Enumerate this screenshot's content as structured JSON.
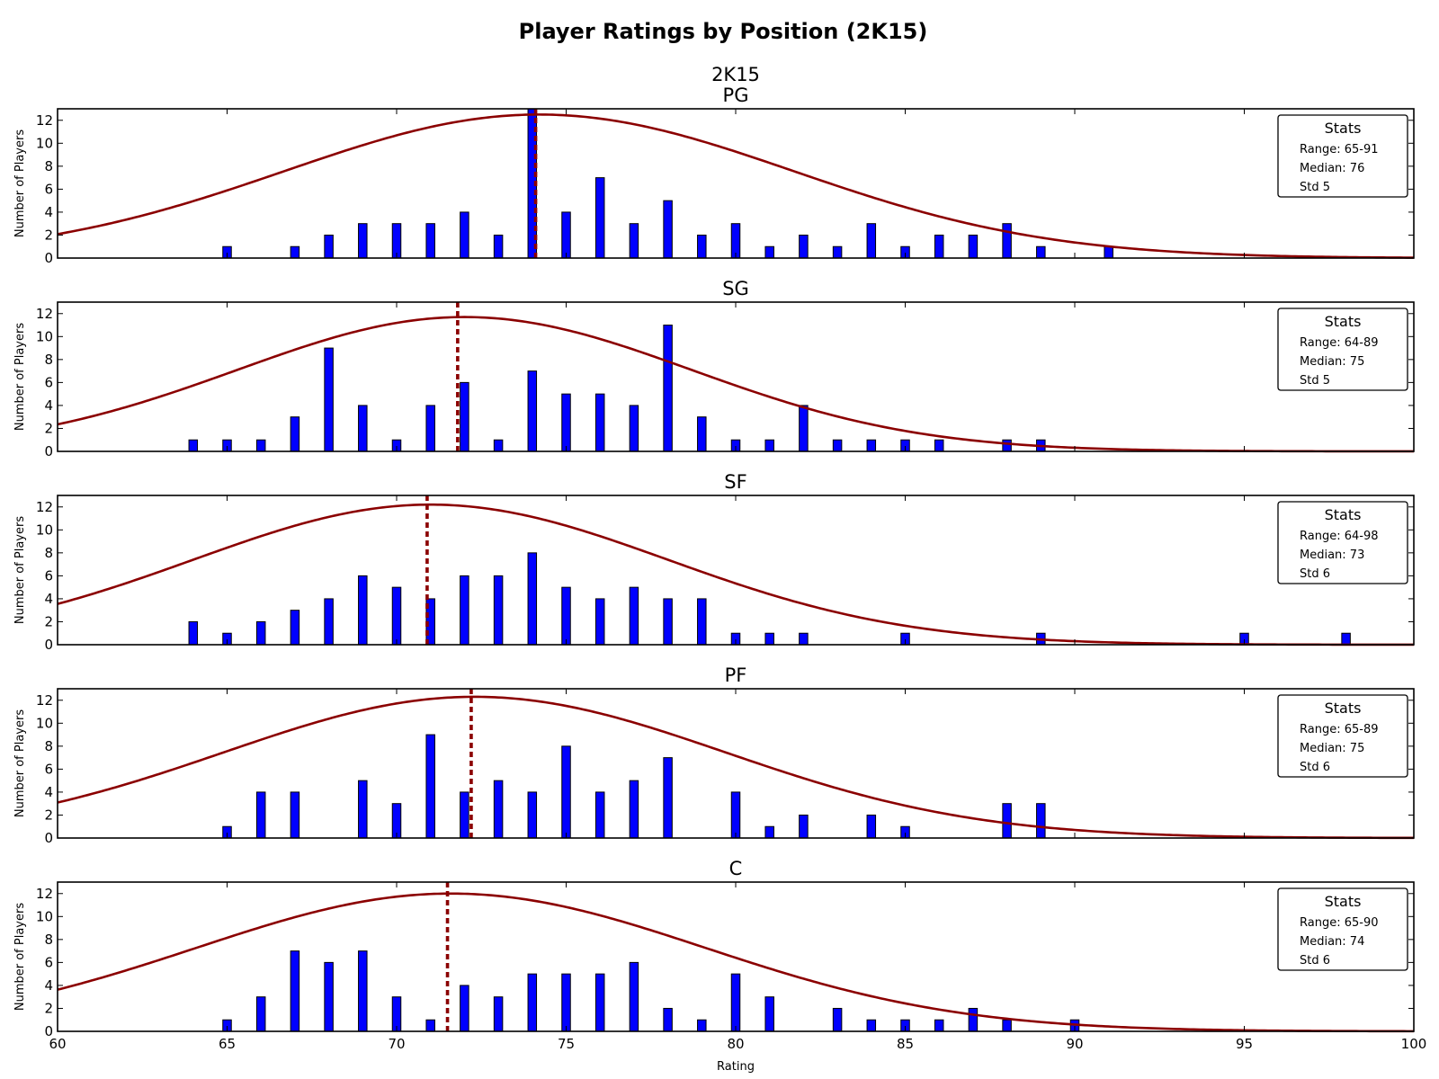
{
  "figure": {
    "title": "Player Ratings by Position (2K15)",
    "subtitle": "2K15",
    "xlabel": "Rating",
    "ylabel": "Number of Players"
  },
  "colors": {
    "bar": "#0000ff",
    "curve": "#8b0000",
    "median_line": "#8b0000"
  },
  "chart_data": [
    {
      "type": "bar",
      "title": "PG",
      "xlim": [
        60,
        100
      ],
      "ylim": [
        0,
        13
      ],
      "yticks": [
        0,
        2,
        4,
        6,
        8,
        10,
        12
      ],
      "xticks": [
        60,
        65,
        70,
        75,
        80,
        85,
        90,
        95,
        100
      ],
      "x": [
        65,
        67,
        68,
        69,
        70,
        71,
        72,
        73,
        74,
        75,
        76,
        77,
        78,
        79,
        80,
        81,
        82,
        83,
        84,
        85,
        86,
        87,
        88,
        89,
        91
      ],
      "values": [
        1,
        1,
        2,
        3,
        3,
        3,
        4,
        2,
        13,
        4,
        7,
        3,
        5,
        2,
        3,
        1,
        2,
        1,
        3,
        1,
        2,
        2,
        3,
        1,
        1
      ],
      "median_line_x": 74.1,
      "curve": {
        "peak_x": 74.2,
        "peak_y": 12.5,
        "sigma": 7.5
      },
      "stats": {
        "title": "Stats",
        "lines": [
          "Range: 65-91",
          "Median: 76",
          "Std 5"
        ]
      }
    },
    {
      "type": "bar",
      "title": "SG",
      "xlim": [
        60,
        100
      ],
      "ylim": [
        0,
        13
      ],
      "yticks": [
        0,
        2,
        4,
        6,
        8,
        10,
        12
      ],
      "xticks": [
        60,
        65,
        70,
        75,
        80,
        85,
        90,
        95,
        100
      ],
      "x": [
        64,
        65,
        66,
        67,
        68,
        69,
        70,
        71,
        72,
        73,
        74,
        75,
        76,
        77,
        78,
        79,
        80,
        81,
        82,
        83,
        84,
        85,
        86,
        88,
        89
      ],
      "values": [
        1,
        1,
        1,
        3,
        9,
        4,
        1,
        4,
        6,
        1,
        7,
        5,
        5,
        4,
        11,
        3,
        1,
        1,
        4,
        1,
        1,
        1,
        1,
        1,
        1
      ],
      "median_line_x": 71.8,
      "curve": {
        "peak_x": 72.0,
        "peak_y": 11.7,
        "sigma": 6.7
      },
      "stats": {
        "title": "Stats",
        "lines": [
          "Range: 64-89",
          "Median: 75",
          "Std 5"
        ]
      }
    },
    {
      "type": "bar",
      "title": "SF",
      "xlim": [
        60,
        100
      ],
      "ylim": [
        0,
        13
      ],
      "yticks": [
        0,
        2,
        4,
        6,
        8,
        10,
        12
      ],
      "xticks": [
        60,
        65,
        70,
        75,
        80,
        85,
        90,
        95,
        100
      ],
      "x": [
        64,
        65,
        66,
        67,
        68,
        69,
        70,
        71,
        72,
        73,
        74,
        75,
        76,
        77,
        78,
        79,
        80,
        81,
        82,
        85,
        89,
        95,
        98
      ],
      "values": [
        2,
        1,
        2,
        3,
        4,
        6,
        5,
        4,
        6,
        6,
        8,
        5,
        4,
        5,
        4,
        4,
        1,
        1,
        1,
        1,
        1,
        1,
        1
      ],
      "median_line_x": 70.9,
      "curve": {
        "peak_x": 71.0,
        "peak_y": 12.2,
        "sigma": 7.0
      },
      "stats": {
        "title": "Stats",
        "lines": [
          "Range: 64-98",
          "Median: 73",
          "Std 6"
        ]
      }
    },
    {
      "type": "bar",
      "title": "PF",
      "xlim": [
        60,
        100
      ],
      "ylim": [
        0,
        13
      ],
      "yticks": [
        0,
        2,
        4,
        6,
        8,
        10,
        12
      ],
      "xticks": [
        60,
        65,
        70,
        75,
        80,
        85,
        90,
        95,
        100
      ],
      "x": [
        65,
        66,
        67,
        69,
        70,
        71,
        72,
        73,
        74,
        75,
        76,
        77,
        78,
        80,
        81,
        82,
        84,
        85,
        88,
        89
      ],
      "values": [
        1,
        4,
        4,
        5,
        3,
        9,
        4,
        5,
        4,
        8,
        4,
        5,
        7,
        4,
        1,
        2,
        2,
        1,
        3,
        3
      ],
      "median_line_x": 72.2,
      "curve": {
        "peak_x": 72.3,
        "peak_y": 12.3,
        "sigma": 7.4
      },
      "stats": {
        "title": "Stats",
        "lines": [
          "Range: 65-89",
          "Median: 75",
          "Std 6"
        ]
      }
    },
    {
      "type": "bar",
      "title": "C",
      "xlim": [
        60,
        100
      ],
      "ylim": [
        0,
        13
      ],
      "yticks": [
        0,
        2,
        4,
        6,
        8,
        10,
        12
      ],
      "xticks": [
        60,
        65,
        70,
        75,
        80,
        85,
        90,
        95,
        100
      ],
      "x": [
        65,
        66,
        67,
        68,
        69,
        70,
        71,
        72,
        73,
        74,
        75,
        76,
        77,
        78,
        79,
        80,
        81,
        83,
        84,
        85,
        86,
        87,
        88,
        90
      ],
      "values": [
        1,
        3,
        7,
        6,
        7,
        3,
        1,
        4,
        3,
        5,
        5,
        5,
        6,
        2,
        1,
        5,
        3,
        2,
        1,
        1,
        1,
        2,
        1,
        1
      ],
      "median_line_x": 71.5,
      "curve": {
        "peak_x": 71.6,
        "peak_y": 12.0,
        "sigma": 7.5
      },
      "stats": {
        "title": "Stats",
        "lines": [
          "Range: 65-90",
          "Median: 74",
          "Std 6"
        ]
      }
    }
  ]
}
